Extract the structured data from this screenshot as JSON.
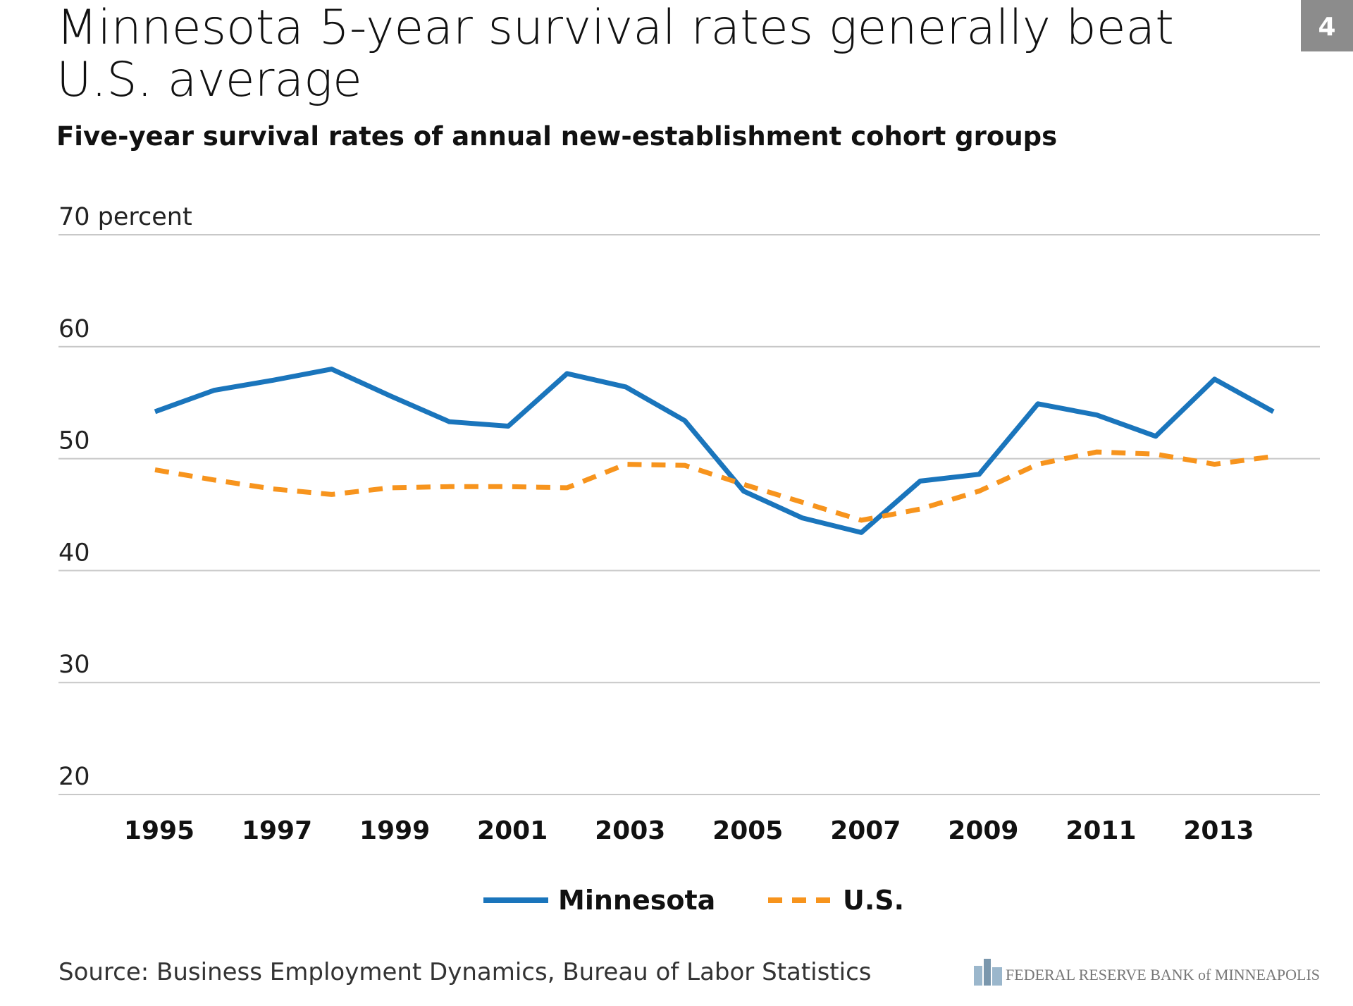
{
  "badge": "4",
  "chart_data": {
    "type": "line",
    "title": [
      "Minnesota 5-year survival rates generally beat",
      "U.S. average"
    ],
    "subtitle": "Five-year survival rates of annual new-establishment cohort groups",
    "categories": [
      "1995",
      null,
      "1997",
      null,
      "1999",
      null,
      "2001",
      null,
      "2003",
      null,
      "2005",
      null,
      "2007",
      null,
      "2009",
      null,
      "2011",
      null,
      "2013",
      null
    ],
    "series": [
      {
        "name": "Minnesota",
        "color": "#1a75bc",
        "dash": false,
        "values": [
          54.2,
          56.1,
          57.0,
          58.0,
          55.6,
          53.3,
          52.9,
          57.6,
          56.4,
          53.4,
          47.1,
          44.7,
          43.4,
          48.0,
          48.6,
          54.9,
          53.9,
          52.0,
          57.1,
          54.2
        ]
      },
      {
        "name": "U.S.",
        "color": "#f7941d",
        "dash": true,
        "values": [
          49.0,
          48.1,
          47.3,
          46.8,
          47.4,
          47.5,
          47.5,
          47.4,
          49.5,
          49.4,
          47.7,
          46.1,
          44.5,
          45.5,
          47.1,
          49.5,
          50.6,
          50.4,
          49.5,
          50.2
        ]
      }
    ],
    "ylim": [
      20,
      70
    ],
    "yticks": [
      20,
      30,
      40,
      50,
      60,
      {
        "value": 70,
        "label": "70 percent"
      }
    ],
    "grid": true,
    "legend": "bottom",
    "source": "Source: Business Employment Dynamics, Bureau of Labor Statistics",
    "footer_logo": "FEDERAL RESERVE BANK of MINNEAPOLIS"
  }
}
